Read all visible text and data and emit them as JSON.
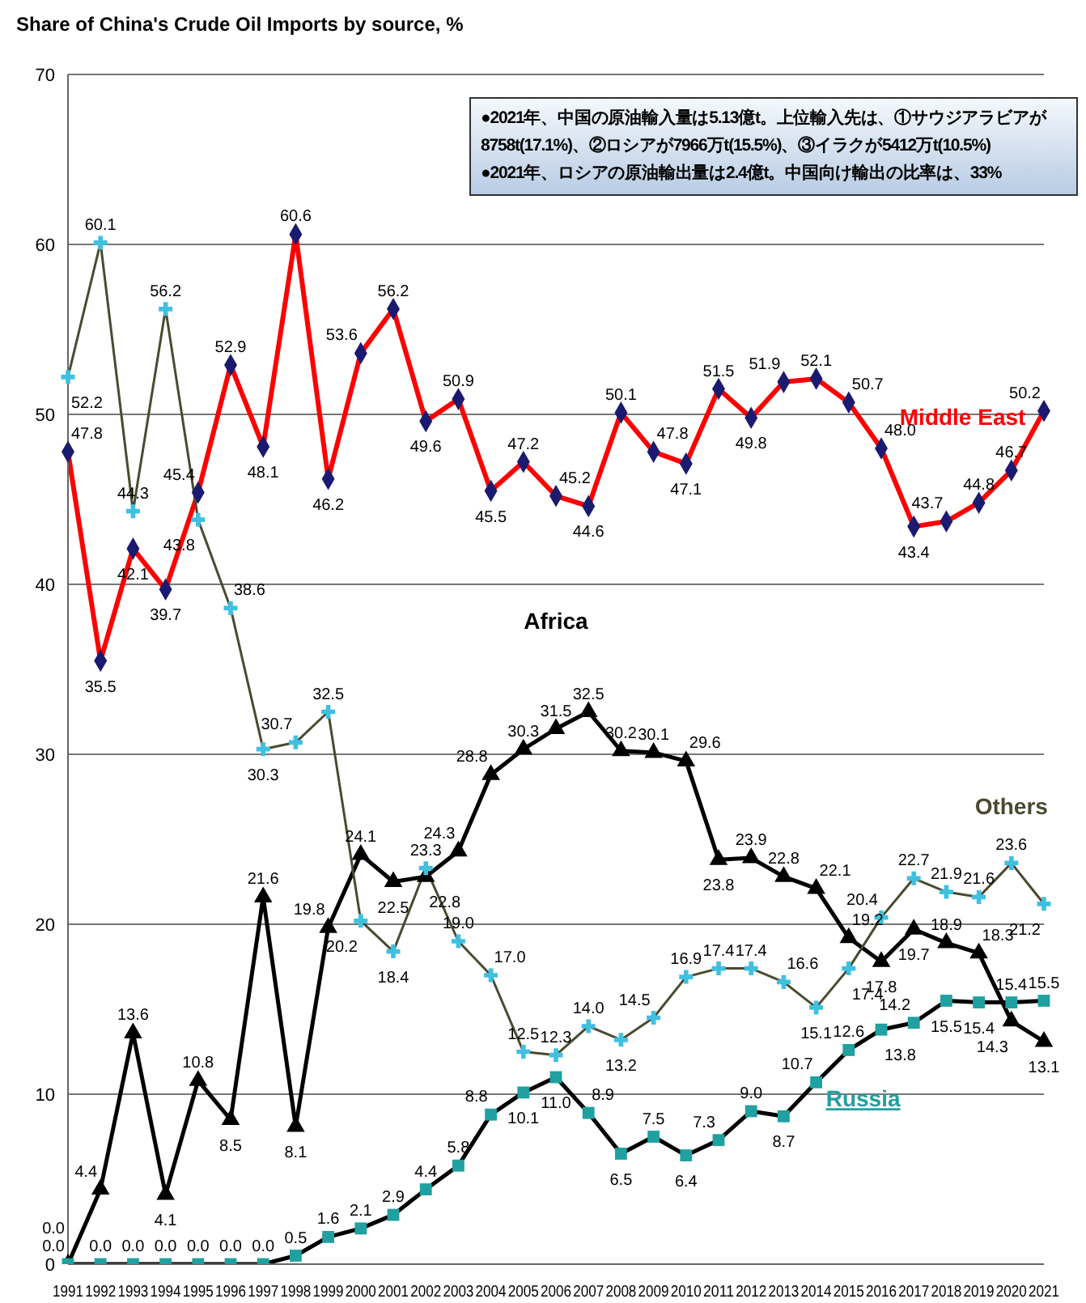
{
  "chart_data": {
    "type": "line",
    "title": "Share of China's Crude Oil Imports by source, %",
    "categories": [
      "1991",
      "1992",
      "1993",
      "1994",
      "1995",
      "1996",
      "1997",
      "1998",
      "1999",
      "2000",
      "2001",
      "2002",
      "2003",
      "2004",
      "2005",
      "2006",
      "2007",
      "2008",
      "2009",
      "2010",
      "2011",
      "2012",
      "2013",
      "2014",
      "2015",
      "2016",
      "2017",
      "2018",
      "2019",
      "2020",
      "2021"
    ],
    "series": [
      {
        "name": "Middle East",
        "color": "#ff0000",
        "marker": "diamond",
        "values": [
          47.8,
          35.5,
          42.1,
          39.7,
          45.4,
          52.9,
          48.1,
          60.6,
          46.2,
          53.6,
          56.2,
          49.6,
          50.9,
          45.5,
          47.2,
          45.2,
          44.6,
          50.1,
          47.8,
          47.1,
          51.5,
          49.8,
          51.9,
          52.1,
          50.7,
          48.0,
          43.4,
          43.7,
          44.8,
          46.7,
          50.2
        ],
        "value_labels": [
          "47.8",
          "35.5",
          "42.1",
          "39.7",
          "45.4",
          "52.9",
          "48.1",
          "60.6",
          "46.2",
          "53.6",
          "56.2",
          "49.6",
          "50.9",
          "45.5",
          "47.2",
          "45.2",
          "44.6",
          "50.1",
          "47.8",
          "47.1",
          "51.5",
          "49.8",
          "51.9",
          "52.1",
          "50.7",
          "48.0",
          "43.4",
          "43.7",
          "44.8",
          "46.7",
          "50.2"
        ]
      },
      {
        "name": "Africa",
        "color": "#000000",
        "marker": "triangle",
        "values": [
          0.0,
          4.4,
          13.6,
          4.1,
          10.8,
          8.5,
          21.6,
          8.1,
          19.8,
          24.1,
          22.5,
          22.8,
          24.3,
          28.8,
          30.3,
          31.5,
          32.5,
          30.2,
          30.1,
          29.6,
          23.8,
          23.9,
          22.8,
          22.1,
          19.2,
          17.8,
          19.7,
          18.9,
          18.3,
          14.3,
          13.1
        ],
        "value_labels": [
          "0.0",
          "4.4",
          "13.6",
          "4.1",
          "10.8",
          "8.5",
          "21.6",
          "8.1",
          "19.8",
          "24.1",
          "22.5",
          "22.8",
          "24.3",
          "28.8",
          "30.3",
          "31.5",
          "32.5",
          "30.2",
          "30.1",
          "29.6",
          "23.8",
          "23.9",
          "22.8",
          "22.1",
          "19.2",
          "17.8",
          "19.7",
          "18.9",
          "18.3",
          "14.3",
          "13.1"
        ]
      },
      {
        "name": "Others",
        "color": "#4a4a30",
        "marker": "cross",
        "values": [
          52.2,
          60.1,
          44.3,
          56.2,
          43.8,
          38.6,
          30.3,
          30.7,
          32.5,
          20.2,
          18.4,
          23.3,
          19.0,
          17.0,
          12.5,
          12.3,
          14.0,
          13.2,
          14.5,
          16.9,
          17.4,
          17.4,
          16.6,
          15.1,
          17.4,
          20.4,
          22.7,
          21.9,
          21.6,
          23.6,
          21.2
        ],
        "value_labels": [
          "52.2",
          "60.1",
          "44.3",
          "56.2",
          "43.8",
          "38.6",
          "30.3",
          "30.7",
          "32.5",
          "20.2",
          "18.4",
          "23.3",
          "19.0",
          "17.0",
          "12.5",
          "12.3",
          "14.0",
          "13.2",
          "14.5",
          "16.9",
          "17.4",
          "17.4",
          "16.6",
          "15.1",
          "17.4",
          "20.4",
          "22.7",
          "21.9",
          "21.6",
          "23.6",
          "21.2"
        ]
      },
      {
        "name": "Russia",
        "color": "#20a0a0",
        "marker": "square",
        "values": [
          0.0,
          0.0,
          0.0,
          0.0,
          0.0,
          0.0,
          0.0,
          0.5,
          1.6,
          2.1,
          2.9,
          4.4,
          5.8,
          8.8,
          10.1,
          11.0,
          8.9,
          6.5,
          7.5,
          6.4,
          7.3,
          9.0,
          8.7,
          10.7,
          12.6,
          13.8,
          14.2,
          15.5,
          15.4,
          15.4,
          15.5
        ],
        "value_labels": [
          "0.0",
          "0.0",
          "0.0",
          "0.0",
          "0.0",
          "0.0",
          "0.0",
          "0.5",
          "1.6",
          "2.1",
          "2.9",
          "4.4",
          "5.8",
          "8.8",
          "10.1",
          "11.0",
          "8.9",
          "6.5",
          "7.5",
          "6.4",
          "7.3",
          "9.0",
          "8.7",
          "10.7",
          "12.6",
          "13.8",
          "14.2",
          "15.5",
          "15.4",
          "15.4",
          "15.5"
        ]
      }
    ],
    "ylim": [
      0,
      70
    ],
    "yticks": [
      0,
      10,
      20,
      30,
      40,
      50,
      60,
      70
    ],
    "grid": "y",
    "annotations": [
      "●2021年、中国の原油輸入量は5.13億t。上位輸入先は、①サウジアラビアが8758t(17.1%)、②ロシアが7966万t(15.5%)、③イラクが5412万t(10.5%)",
      "●2021年、ロシアの原油輸出量は2.4億t。中国向け輸出の比率は、33%"
    ]
  }
}
